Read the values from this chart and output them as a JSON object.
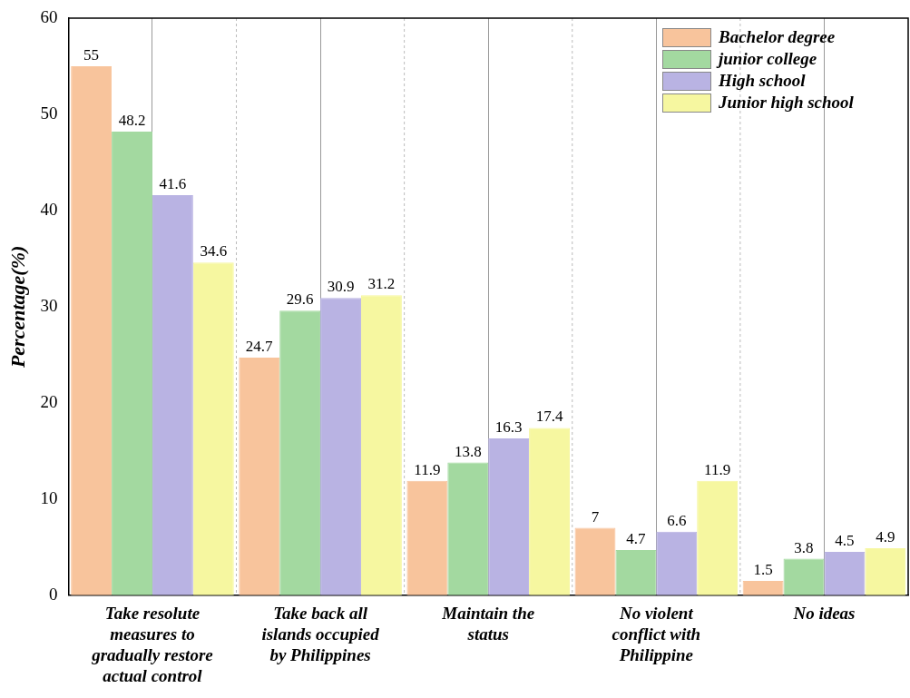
{
  "chart_data": {
    "type": "bar",
    "ylabel": "Percentage(%)",
    "categories": [
      "Take resolute measures to gradually restore actual control",
      "Take back all islands occupied by Philippines",
      "Maintain the status",
      "No violent conflict with Philippine",
      "No ideas"
    ],
    "series": [
      {
        "name": "Bachelor degree",
        "color": "#f8c49c",
        "values": [
          55,
          24.7,
          11.9,
          7,
          1.5
        ]
      },
      {
        "name": "junior college",
        "color": "#a3d9a0",
        "values": [
          48.2,
          29.6,
          13.8,
          4.7,
          3.8
        ]
      },
      {
        "name": "High school",
        "color": "#b9b3e3",
        "values": [
          41.6,
          30.9,
          16.3,
          6.6,
          4.5
        ]
      },
      {
        "name": "Junior high school",
        "color": "#f6f7a0",
        "values": [
          34.6,
          31.2,
          17.4,
          11.9,
          4.9
        ]
      }
    ],
    "ylim": [
      0,
      60
    ],
    "yticks": [
      0,
      10,
      20,
      30,
      40,
      50,
      60
    ],
    "grid": "x",
    "legend": "top right",
    "data_labels": true
  }
}
